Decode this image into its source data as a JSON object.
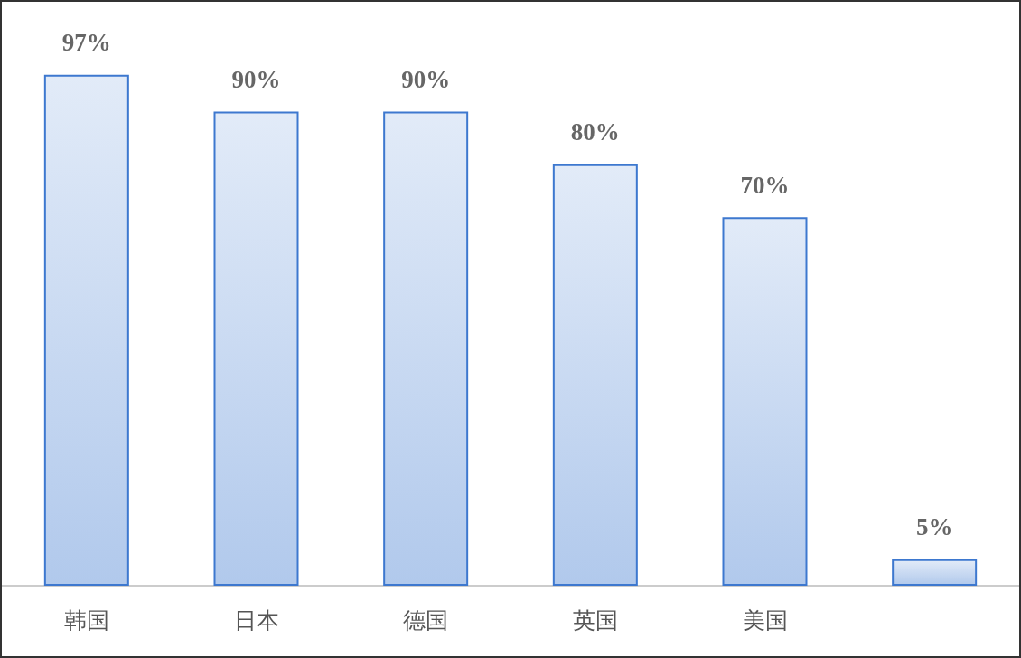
{
  "chart_data": {
    "type": "bar",
    "categories": [
      "韩国",
      "日本",
      "德国",
      "英国",
      "美国",
      null
    ],
    "values": [
      97,
      90,
      90,
      80,
      70,
      5
    ],
    "value_labels": [
      "97%",
      "90%",
      "90%",
      "80%",
      "70%",
      "5%"
    ],
    "color": "#3d78cf"
  }
}
